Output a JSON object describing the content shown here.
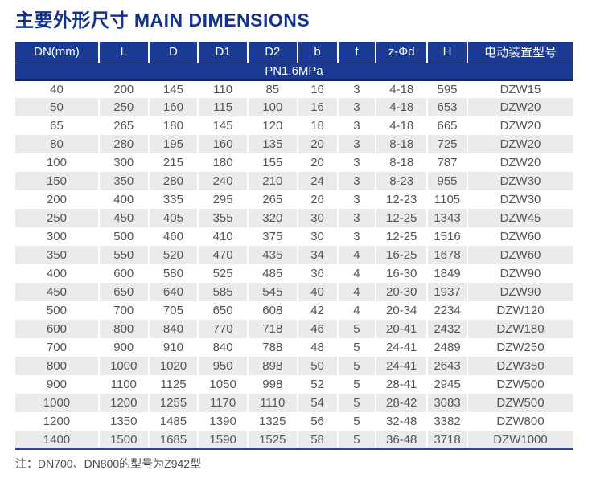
{
  "page": {
    "title": "主要外形尺寸 MAIN DIMENSIONS",
    "note": "注：DN700、DN800的型号为Z942型"
  },
  "colors": {
    "header_bg": "#1a3a94",
    "title_text": "#12328f",
    "band_bottom_line": "#0f2a6b",
    "band_top_line": "#7d90c9",
    "row_stripe": "#ebebeb",
    "body_text": "#555555",
    "table_bottom_line": "#2743a0"
  },
  "table": {
    "columns": [
      "DN(mm)",
      "L",
      "D",
      "D1",
      "D2",
      "b",
      "f",
      "z-Φd",
      "H",
      "电动装置型号"
    ],
    "band_label": "PN1.6MPa",
    "rows": [
      [
        "40",
        "200",
        "145",
        "110",
        "85",
        "16",
        "3",
        "4-18",
        "595",
        "DZW15"
      ],
      [
        "50",
        "250",
        "160",
        "115",
        "100",
        "16",
        "3",
        "4-18",
        "653",
        "DZW20"
      ],
      [
        "65",
        "265",
        "180",
        "145",
        "120",
        "18",
        "3",
        "4-18",
        "665",
        "DZW20"
      ],
      [
        "80",
        "280",
        "195",
        "160",
        "135",
        "20",
        "3",
        "8-18",
        "725",
        "DZW20"
      ],
      [
        "100",
        "300",
        "215",
        "180",
        "155",
        "20",
        "3",
        "8-18",
        "787",
        "DZW20"
      ],
      [
        "150",
        "350",
        "280",
        "240",
        "210",
        "24",
        "3",
        "8-23",
        "955",
        "DZW30"
      ],
      [
        "200",
        "400",
        "335",
        "295",
        "265",
        "26",
        "3",
        "12-23",
        "1105",
        "DZW30"
      ],
      [
        "250",
        "450",
        "405",
        "355",
        "320",
        "30",
        "3",
        "12-25",
        "1343",
        "DZW45"
      ],
      [
        "300",
        "500",
        "460",
        "410",
        "375",
        "30",
        "3",
        "12-25",
        "1516",
        "DZW60"
      ],
      [
        "350",
        "550",
        "520",
        "470",
        "435",
        "34",
        "4",
        "16-25",
        "1678",
        "DZW60"
      ],
      [
        "400",
        "600",
        "580",
        "525",
        "485",
        "36",
        "4",
        "16-30",
        "1849",
        "DZW90"
      ],
      [
        "450",
        "650",
        "640",
        "585",
        "545",
        "40",
        "4",
        "20-30",
        "1937",
        "DZW90"
      ],
      [
        "500",
        "700",
        "705",
        "650",
        "608",
        "42",
        "4",
        "20-34",
        "2234",
        "DZW120"
      ],
      [
        "600",
        "800",
        "840",
        "770",
        "718",
        "46",
        "5",
        "20-41",
        "2432",
        "DZW180"
      ],
      [
        "700",
        "900",
        "910",
        "840",
        "788",
        "48",
        "5",
        "24-41",
        "2489",
        "DZW250"
      ],
      [
        "800",
        "1000",
        "1020",
        "950",
        "898",
        "50",
        "5",
        "24-41",
        "2643",
        "DZW350"
      ],
      [
        "900",
        "1100",
        "1125",
        "1050",
        "998",
        "52",
        "5",
        "28-41",
        "2945",
        "DZW500"
      ],
      [
        "1000",
        "1200",
        "1255",
        "1170",
        "1110",
        "54",
        "5",
        "28-42",
        "3083",
        "DZW500"
      ],
      [
        "1200",
        "1350",
        "1485",
        "1390",
        "1325",
        "56",
        "5",
        "32-48",
        "3382",
        "DZW800"
      ],
      [
        "1400",
        "1500",
        "1685",
        "1590",
        "1525",
        "58",
        "5",
        "36-48",
        "3718",
        "DZW1000"
      ]
    ]
  }
}
